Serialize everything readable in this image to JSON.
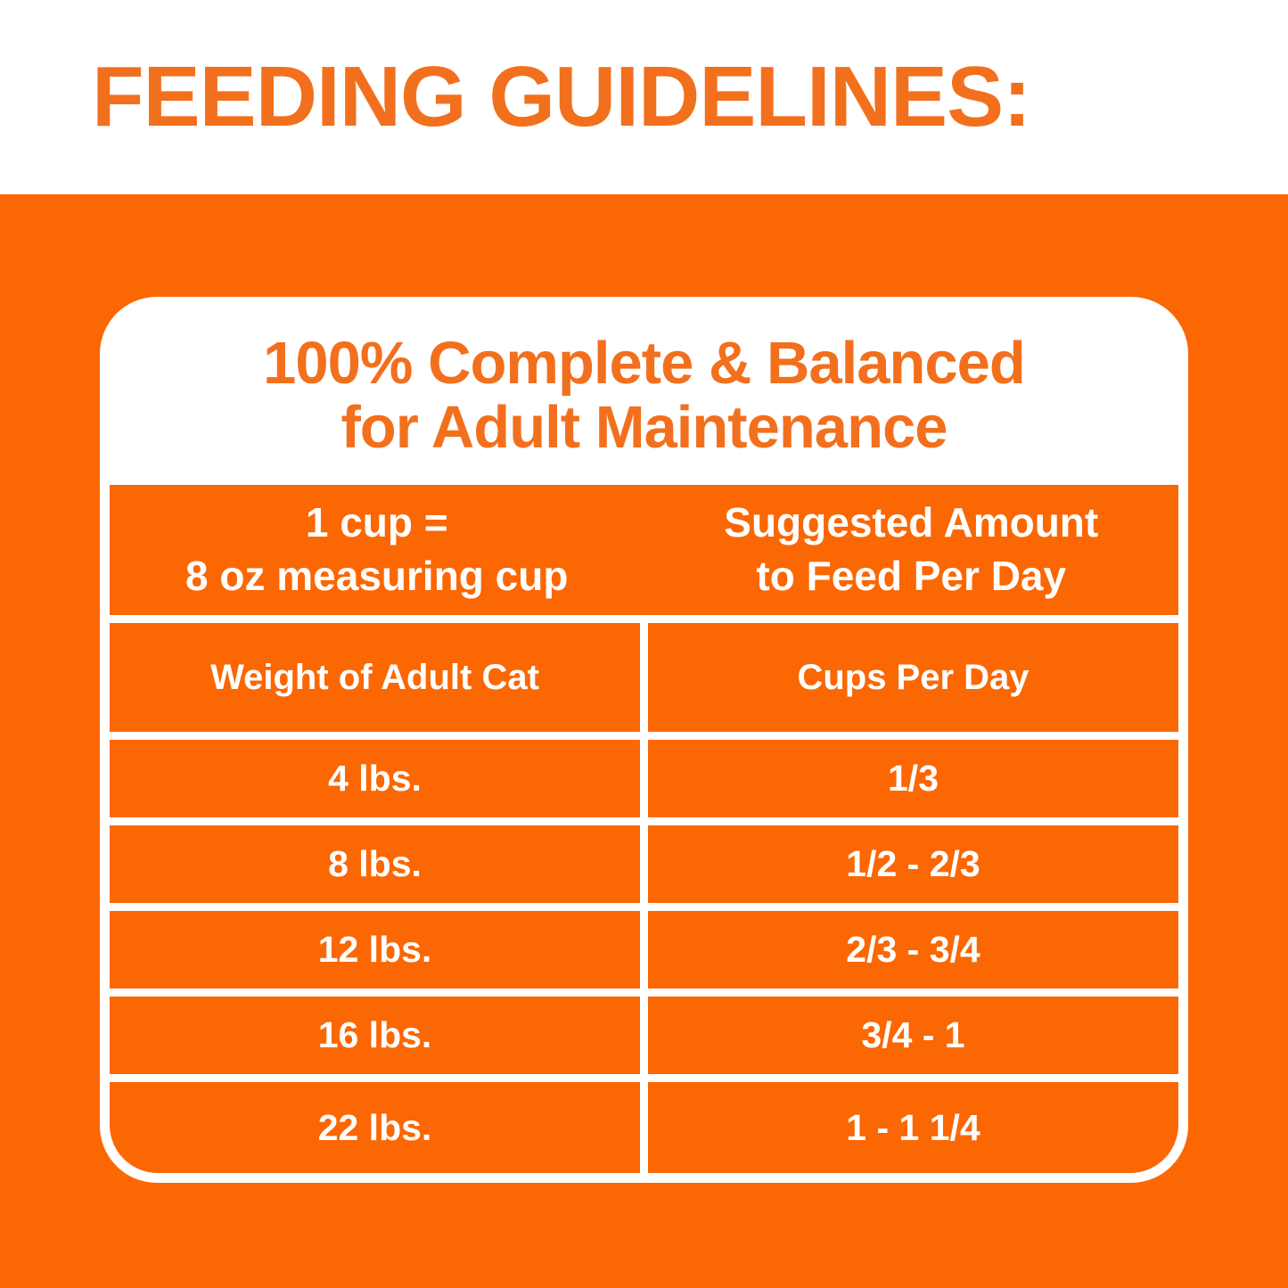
{
  "page": {
    "title": "FEEDING GUIDELINES:"
  },
  "colors": {
    "orange_background": "#FB6703",
    "orange_text": "#F2701D",
    "table_text": "#FFFFFF",
    "card_background": "#FFFFFF"
  },
  "card": {
    "heading_line1": "100% Complete & Balanced",
    "heading_line2": "for Adult Maintenance",
    "info": {
      "left_line1": "1 cup =",
      "left_line2": "8 oz measuring cup",
      "right_line1": "Suggested Amount",
      "right_line2": "to Feed Per Day"
    },
    "columns": [
      "Weight of Adult Cat",
      "Cups Per Day"
    ],
    "rows": [
      {
        "weight": "4 lbs.",
        "cups": "1/3"
      },
      {
        "weight": "8 lbs.",
        "cups": "1/2 - 2/3"
      },
      {
        "weight": "12 lbs.",
        "cups": "2/3 - 3/4"
      },
      {
        "weight": "16 lbs.",
        "cups": "3/4 - 1"
      },
      {
        "weight": "22 lbs.",
        "cups": "1 - 1 1/4"
      }
    ]
  }
}
